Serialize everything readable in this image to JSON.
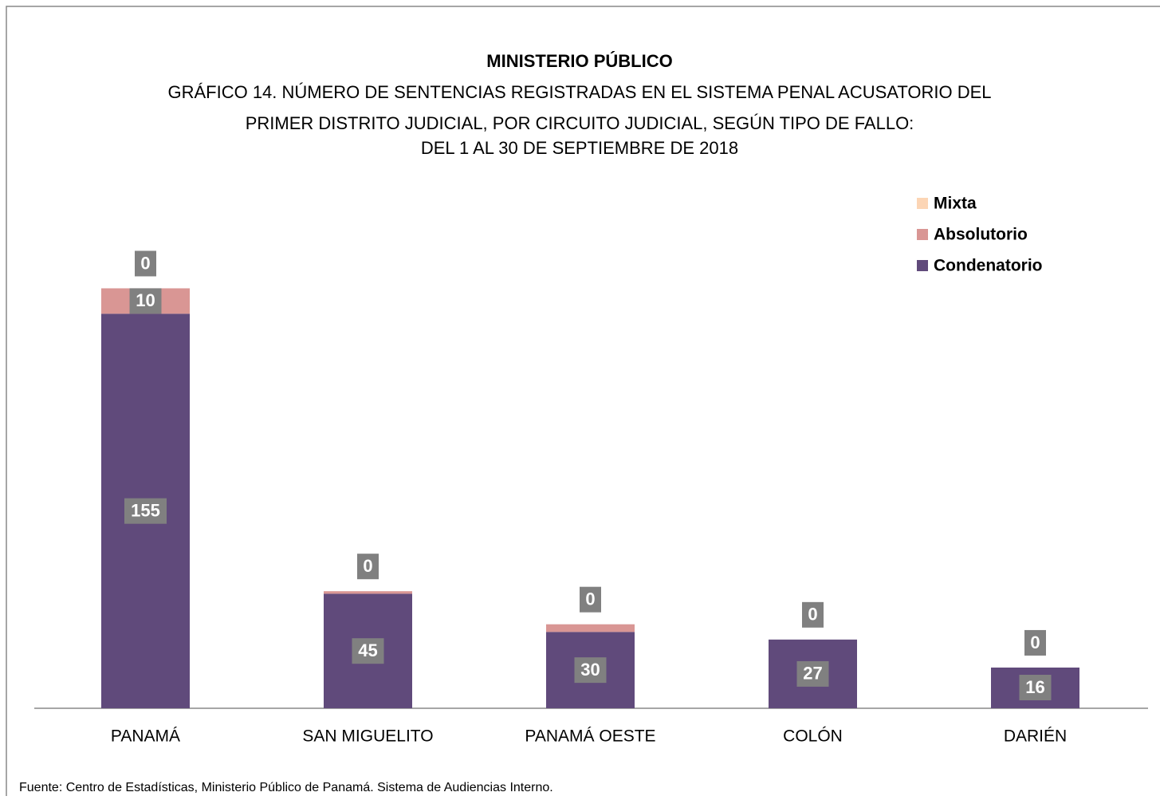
{
  "chart_data": {
    "type": "stacked_bar",
    "title": "MINISTERIO PÚBLICO",
    "subtitle": [
      "GRÁFICO 14.  NÚMERO DE SENTENCIAS REGISTRADAS EN EL SISTEMA PENAL ACUSATORIO  DEL",
      "PRIMER DISTRITO JUDICIAL, POR CIRCUITO JUDICIAL, SEGÚN TIPO DE FALLO:",
      "DEL 1 AL 30 DE SEPTIEMBRE  DE 2018"
    ],
    "categories": [
      "PANAMÁ",
      "SAN MIGUELITO",
      "PANAMÁ OESTE",
      "COLÓN",
      "DARIÉN"
    ],
    "series": [
      {
        "name": "Condenatorio",
        "color": "#604a7b",
        "values": [
          155,
          45,
          30,
          27,
          16
        ],
        "value_labels": [
          "155",
          "45",
          "30",
          "27",
          "16"
        ]
      },
      {
        "name": "Absolutorio",
        "color": "#d99694",
        "values": [
          10,
          1,
          3,
          0,
          0
        ],
        "value_labels": [
          "10",
          null,
          null,
          null,
          null
        ]
      },
      {
        "name": "Mixta",
        "color": "#fcd5b5",
        "values": [
          0,
          0,
          0,
          0,
          0
        ],
        "value_labels": [
          "0",
          "0",
          "0",
          "0",
          "0"
        ]
      }
    ],
    "ylim": [
      0,
      180
    ],
    "legend": "top-right",
    "source": "Fuente: Centro de Estadísticas, Ministerio Público de Panamá. Sistema de Audiencias Interno."
  }
}
